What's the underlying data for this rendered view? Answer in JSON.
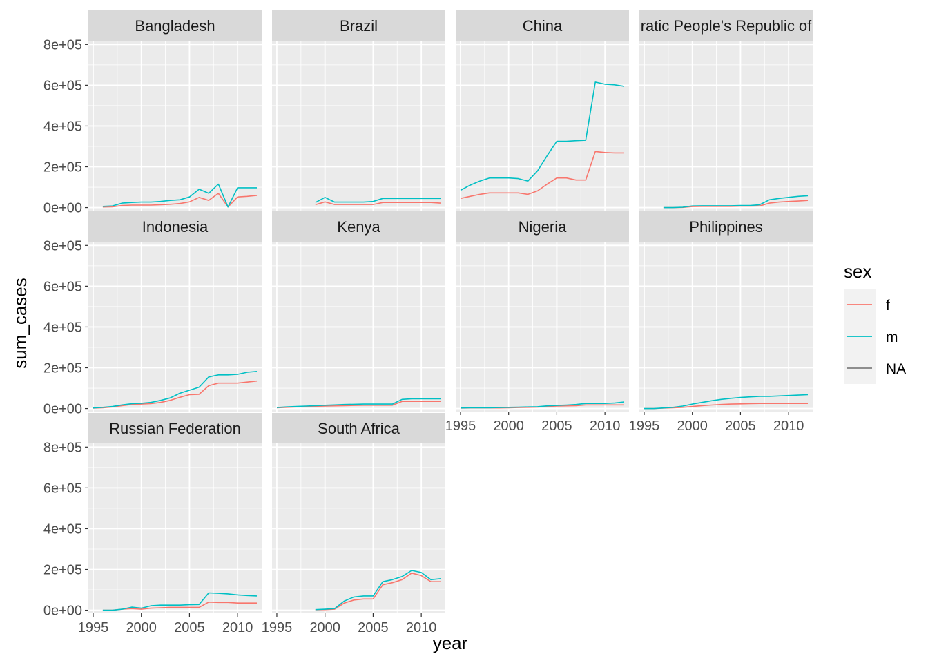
{
  "chart_data": {
    "type": "line",
    "xlabel": "year",
    "ylabel": "sum_cases",
    "xlim": [
      1994.5,
      2012.5
    ],
    "ylim": [
      -15000,
      818000
    ],
    "x_ticks": [
      1995,
      2000,
      2005,
      2010
    ],
    "y_ticks": [
      0,
      200000,
      400000,
      600000,
      800000
    ],
    "y_tick_labels": [
      "0e+00",
      "2e+05",
      "4e+05",
      "6e+05",
      "8e+05"
    ],
    "grid": true,
    "legend": {
      "title": "sex",
      "position": "right",
      "entries": [
        {
          "label": "f",
          "color": "#F8766D"
        },
        {
          "label": "m",
          "color": "#00BFC4"
        },
        {
          "label": "NA",
          "color": "#7F7F7F"
        }
      ]
    },
    "panels": [
      {
        "strip": "Bangladesh",
        "series": [
          {
            "key": "f",
            "x": [
              1996,
              1997,
              1998,
              1999,
              2000,
              2001,
              2002,
              2003,
              2004,
              2005,
              2006,
              2007,
              2008,
              2009,
              2010,
              2011,
              2012
            ],
            "y": [
              3000,
              4000,
              10000,
              12000,
              12000,
              12000,
              14000,
              16000,
              20000,
              28000,
              50000,
              35000,
              70000,
              3000,
              52000,
              55000,
              60000
            ]
          },
          {
            "key": "m",
            "x": [
              1996,
              1997,
              1998,
              1999,
              2000,
              2001,
              2002,
              2003,
              2004,
              2005,
              2006,
              2007,
              2008,
              2009,
              2010,
              2011,
              2012
            ],
            "y": [
              6000,
              8000,
              22000,
              25000,
              27000,
              27000,
              30000,
              35000,
              38000,
              52000,
              90000,
              70000,
              115000,
              3000,
              97000,
              97000,
              97000
            ]
          }
        ]
      },
      {
        "strip": "Brazil",
        "series": [
          {
            "key": "f",
            "x": [
              1999,
              2000,
              2001,
              2002,
              2003,
              2004,
              2005,
              2006,
              2007,
              2008,
              2009,
              2010,
              2011,
              2012
            ],
            "y": [
              14000,
              28000,
              15000,
              15000,
              15000,
              15000,
              15000,
              25000,
              25000,
              25000,
              25000,
              25000,
              25000,
              22000
            ]
          },
          {
            "key": "m",
            "x": [
              1999,
              2000,
              2001,
              2002,
              2003,
              2004,
              2005,
              2006,
              2007,
              2008,
              2009,
              2010,
              2011,
              2012
            ],
            "y": [
              25000,
              50000,
              27000,
              27000,
              27000,
              27000,
              30000,
              45000,
              45000,
              45000,
              45000,
              45000,
              45000,
              45000
            ]
          }
        ]
      },
      {
        "strip": "China",
        "series": [
          {
            "key": "f",
            "x": [
              1995,
              1996,
              1997,
              1998,
              1999,
              2000,
              2001,
              2002,
              2003,
              2004,
              2005,
              2006,
              2007,
              2008,
              2009,
              2010,
              2011,
              2012
            ],
            "y": [
              45000,
              55000,
              65000,
              72000,
              72000,
              72000,
              72000,
              65000,
              82000,
              115000,
              145000,
              145000,
              135000,
              135000,
              275000,
              270000,
              268000,
              268000
            ]
          },
          {
            "key": "m",
            "x": [
              1995,
              1996,
              1997,
              1998,
              1999,
              2000,
              2001,
              2002,
              2003,
              2004,
              2005,
              2006,
              2007,
              2008,
              2009,
              2010,
              2011,
              2012
            ],
            "y": [
              85000,
              110000,
              130000,
              145000,
              145000,
              145000,
              142000,
              130000,
              180000,
              255000,
              325000,
              325000,
              328000,
              330000,
              615000,
              605000,
              602000,
              595000
            ]
          }
        ]
      },
      {
        "strip": "ratic People's Republic of",
        "series": [
          {
            "key": "f",
            "x": [
              1997,
              1998,
              1999,
              2000,
              2001,
              2002,
              2003,
              2004,
              2005,
              2006,
              2007,
              2008,
              2009,
              2010,
              2011,
              2012
            ],
            "y": [
              0,
              0,
              1000,
              5000,
              6000,
              6000,
              6000,
              6000,
              7000,
              7000,
              8000,
              22000,
              27000,
              30000,
              32000,
              35000
            ]
          },
          {
            "key": "m",
            "x": [
              1997,
              1998,
              1999,
              2000,
              2001,
              2002,
              2003,
              2004,
              2005,
              2006,
              2007,
              2008,
              2009,
              2010,
              2011,
              2012
            ],
            "y": [
              0,
              0,
              2000,
              8000,
              9000,
              9000,
              9000,
              9000,
              10000,
              10000,
              14000,
              38000,
              45000,
              50000,
              55000,
              58000
            ]
          }
        ]
      },
      {
        "strip": "Indonesia",
        "series": [
          {
            "key": "f",
            "x": [
              1995,
              1996,
              1997,
              1998,
              1999,
              2000,
              2001,
              2002,
              2003,
              2004,
              2005,
              2006,
              2007,
              2008,
              2009,
              2010,
              2011,
              2012
            ],
            "y": [
              2000,
              4000,
              8000,
              14000,
              20000,
              22000,
              24000,
              30000,
              40000,
              55000,
              68000,
              70000,
              112000,
              125000,
              125000,
              125000,
              130000,
              135000
            ]
          },
          {
            "key": "m",
            "x": [
              1995,
              1996,
              1997,
              1998,
              1999,
              2000,
              2001,
              2002,
              2003,
              2004,
              2005,
              2006,
              2007,
              2008,
              2009,
              2010,
              2011,
              2012
            ],
            "y": [
              3000,
              6000,
              10000,
              18000,
              24000,
              26000,
              30000,
              40000,
              52000,
              75000,
              90000,
              105000,
              155000,
              165000,
              165000,
              168000,
              178000,
              182000
            ]
          }
        ]
      },
      {
        "strip": "Kenya",
        "series": [
          {
            "key": "f",
            "x": [
              1995,
              1996,
              1997,
              1998,
              1999,
              2000,
              2001,
              2002,
              2003,
              2004,
              2005,
              2006,
              2007,
              2008,
              2009,
              2010,
              2011,
              2012
            ],
            "y": [
              4000,
              6000,
              8000,
              9000,
              11000,
              12000,
              13000,
              14000,
              15000,
              16000,
              16000,
              16000,
              16000,
              35000,
              35000,
              35000,
              35000,
              35000
            ]
          },
          {
            "key": "m",
            "x": [
              1995,
              1996,
              1997,
              1998,
              1999,
              2000,
              2001,
              2002,
              2003,
              2004,
              2005,
              2006,
              2007,
              2008,
              2009,
              2010,
              2011,
              2012
            ],
            "y": [
              5000,
              8000,
              10000,
              12000,
              14000,
              16000,
              18000,
              20000,
              21000,
              22000,
              22000,
              22000,
              22000,
              45000,
              48000,
              48000,
              48000,
              48000
            ]
          }
        ]
      },
      {
        "strip": "Nigeria",
        "series": [
          {
            "key": "f",
            "x": [
              1995,
              1996,
              1997,
              1998,
              1999,
              2000,
              2001,
              2002,
              2003,
              2004,
              2005,
              2006,
              2007,
              2008,
              2009,
              2010,
              2011,
              2012
            ],
            "y": [
              2000,
              3000,
              3000,
              3000,
              3000,
              4000,
              5000,
              6000,
              7000,
              10000,
              12000,
              13000,
              14000,
              18000,
              18000,
              18000,
              18000,
              18000
            ]
          },
          {
            "key": "m",
            "x": [
              1995,
              1996,
              1997,
              1998,
              1999,
              2000,
              2001,
              2002,
              2003,
              2004,
              2005,
              2006,
              2007,
              2008,
              2009,
              2010,
              2011,
              2012
            ],
            "y": [
              3000,
              4000,
              4000,
              4000,
              5000,
              6000,
              7000,
              8000,
              9000,
              13000,
              15000,
              17000,
              20000,
              25000,
              25000,
              25000,
              27000,
              32000
            ]
          }
        ]
      },
      {
        "strip": "Philippines",
        "series": [
          {
            "key": "f",
            "x": [
              1995,
              1996,
              1997,
              1998,
              1999,
              2000,
              2001,
              2002,
              2003,
              2004,
              2005,
              2006,
              2007,
              2008,
              2009,
              2010,
              2011,
              2012
            ],
            "y": [
              0,
              0,
              2000,
              4000,
              6000,
              10000,
              14000,
              17000,
              20000,
              22000,
              23000,
              24000,
              25000,
              25000,
              25000,
              25000,
              25000,
              25000
            ]
          },
          {
            "key": "m",
            "x": [
              1995,
              1996,
              1997,
              1998,
              1999,
              2000,
              2001,
              2002,
              2003,
              2004,
              2005,
              2006,
              2007,
              2008,
              2009,
              2010,
              2011,
              2012
            ],
            "y": [
              0,
              0,
              3000,
              6000,
              12000,
              22000,
              30000,
              38000,
              45000,
              50000,
              54000,
              57000,
              60000,
              60000,
              62000,
              64000,
              66000,
              68000
            ]
          }
        ]
      },
      {
        "strip": "Russian Federation",
        "series": [
          {
            "key": "f",
            "x": [
              1996,
              1997,
              1998,
              1999,
              2000,
              2001,
              2002,
              2003,
              2004,
              2005,
              2006,
              2007,
              2008,
              2009,
              2010,
              2011,
              2012
            ],
            "y": [
              0,
              0,
              5000,
              8000,
              5000,
              10000,
              12000,
              14000,
              14000,
              14000,
              14000,
              40000,
              38000,
              38000,
              35000,
              35000,
              35000
            ]
          },
          {
            "key": "m",
            "x": [
              1996,
              1997,
              1998,
              1999,
              2000,
              2001,
              2002,
              2003,
              2004,
              2005,
              2006,
              2007,
              2008,
              2009,
              2010,
              2011,
              2012
            ],
            "y": [
              0,
              0,
              5000,
              15000,
              10000,
              22000,
              25000,
              25000,
              25000,
              27000,
              28000,
              85000,
              83000,
              80000,
              75000,
              72000,
              70000
            ]
          }
        ]
      },
      {
        "strip": "South Africa",
        "series": [
          {
            "key": "f",
            "x": [
              1999,
              2000,
              2001,
              2002,
              2003,
              2004,
              2005,
              2006,
              2007,
              2008,
              2009,
              2010,
              2011,
              2012
            ],
            "y": [
              2000,
              3000,
              5000,
              35000,
              50000,
              55000,
              55000,
              125000,
              135000,
              150000,
              182000,
              170000,
              140000,
              140000
            ]
          },
          {
            "key": "m",
            "x": [
              1999,
              2000,
              2001,
              2002,
              2003,
              2004,
              2005,
              2006,
              2007,
              2008,
              2009,
              2010,
              2011,
              2012
            ],
            "y": [
              3000,
              5000,
              8000,
              45000,
              65000,
              70000,
              70000,
              140000,
              150000,
              165000,
              195000,
              185000,
              150000,
              155000
            ]
          }
        ]
      }
    ]
  }
}
